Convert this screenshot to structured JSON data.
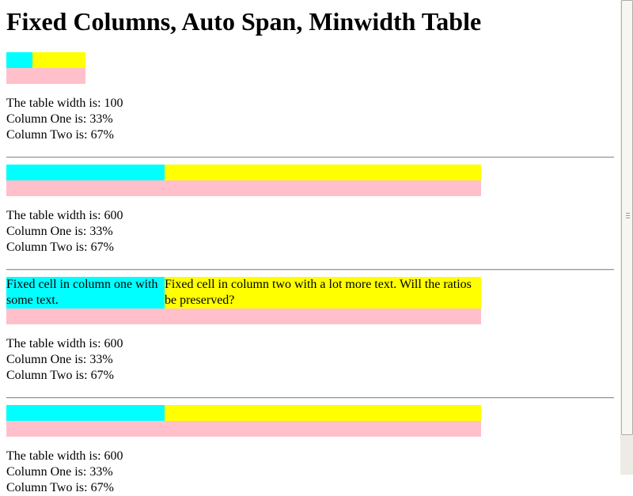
{
  "header": {
    "title": "Fixed Columns, Auto Span, Minwidth Table"
  },
  "sections": [
    {
      "lines": [
        "The table width is: 100",
        "Column One is: 33%",
        "Column Two is: 67%"
      ]
    },
    {
      "lines": [
        "The table width is: 600",
        "Column One is: 33%",
        "Column Two is: 67%"
      ]
    },
    {
      "cells": [
        "Fixed cell in column one with some text.",
        "Fixed cell in column two with a lot more text. Will the ratios be preserved?"
      ],
      "lines": [
        "The table width is: 600",
        "Column One is: 33%",
        "Column Two is: 67%"
      ]
    },
    {
      "lines": [
        "The table width is: 600",
        "Column One is: 33%",
        "Column Two is: 67%"
      ]
    }
  ]
}
